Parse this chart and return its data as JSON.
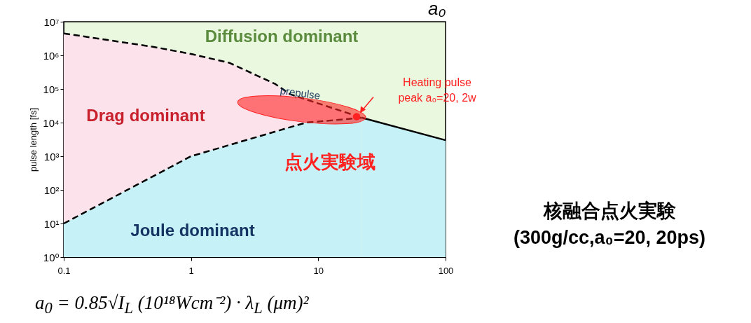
{
  "chart_data": {
    "type": "area",
    "xlabel": "a₀",
    "ylabel": "pulse length [fs]",
    "log": "xy",
    "xlim": [
      0.1,
      100
    ],
    "xticks": [
      0.1,
      1,
      10,
      100
    ],
    "ylim": [
      1,
      10000000
    ],
    "yticks": [
      {
        "value": 1,
        "label": "10⁰"
      },
      {
        "value": 10,
        "label": "10¹"
      },
      {
        "value": 100,
        "label": "10²"
      },
      {
        "value": 1000,
        "label": "10³"
      },
      {
        "value": 10000,
        "label": "10⁴"
      },
      {
        "value": 100000,
        "label": "10⁵"
      },
      {
        "value": 1000000,
        "label": "10⁶"
      },
      {
        "value": 10000000,
        "label": "10⁷"
      }
    ],
    "bands": [
      {
        "axis": "x",
        "from": 0.1,
        "to": 100,
        "color": "#e9f8df"
      }
    ],
    "series": [
      {
        "color": "#fce2ea",
        "line_style": "dashed",
        "x": [
          0.1,
          0.5,
          1,
          2,
          4.6,
          6,
          22
        ],
        "values": [
          4500000,
          1800000,
          1100000,
          600000,
          140000,
          70000,
          14000
        ]
      },
      {
        "color": "#c6f2f7",
        "line_style": "dashed",
        "x": [
          0.1,
          1,
          8,
          22
        ],
        "values": [
          10,
          1000,
          10000,
          14000
        ]
      },
      {
        "color": "#c6f2f7",
        "line_style": "solid",
        "x": [
          22,
          100
        ],
        "values": [
          14000,
          3000
        ]
      },
      {
        "type": "scatter",
        "color": "#ff1a1a",
        "x": [
          20
        ],
        "values": [
          15000
        ]
      }
    ],
    "annotations": [
      "Diffusion dominant",
      "Drag dominant",
      "Joule dominant",
      "点火実験域",
      {
        "text": "prepulse",
        "x": 7.2,
        "y": 75000
      },
      "Heating pulse\npeak a₀=20, 2w",
      "核融合点火実験\n(300g/cc,a₀=20, 20ps)",
      "a$_{0}$ = 0.85√I$_{L}$ (10¹⁸Wcm⁻²) · λ$_{L}$ (μm)²"
    ]
  }
}
